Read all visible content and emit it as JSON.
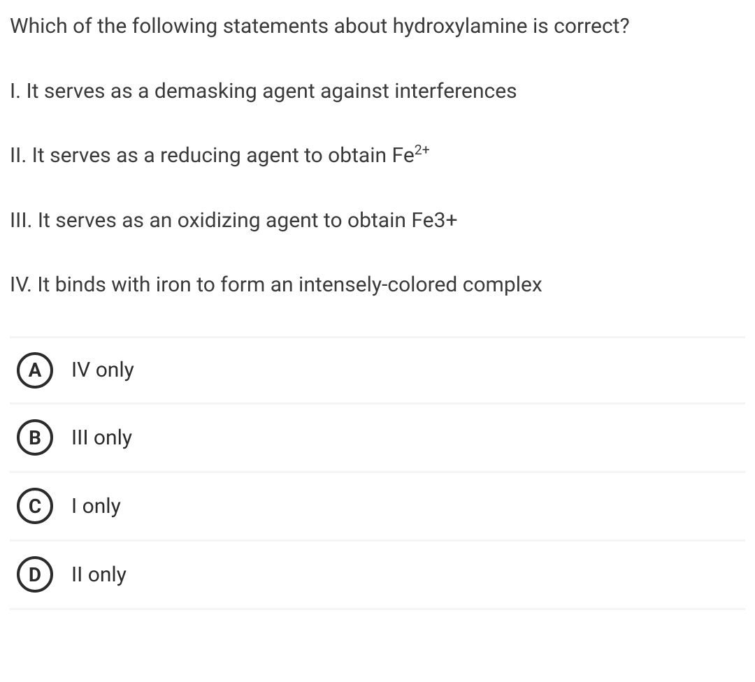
{
  "question": {
    "prompt": "Which of the following statements about hydroxylamine is correct?",
    "statements": [
      {
        "text_pre": "I. It serves as a demasking agent against interferences",
        "sup": "",
        "text_post": ""
      },
      {
        "text_pre": "II. It serves as a reducing agent to obtain Fe",
        "sup": "2+",
        "text_post": ""
      },
      {
        "text_pre": "III. It serves as an oxidizing agent to obtain Fe3+",
        "sup": "",
        "text_post": ""
      },
      {
        "text_pre": "IV. It binds with iron to form an intensely-colored complex",
        "sup": "",
        "text_post": ""
      }
    ],
    "options": [
      {
        "letter": "A",
        "text": "IV only"
      },
      {
        "letter": "B",
        "text": "III only"
      },
      {
        "letter": "C",
        "text": "I only"
      },
      {
        "letter": "D",
        "text": "II only"
      }
    ]
  },
  "style": {
    "text_color": "#3a3a3a",
    "option_border_color": "#f4f4f4",
    "option_circle_color": "#2b2b2b",
    "background": "#ffffff",
    "prompt_fontsize": 30,
    "statement_fontsize": 30,
    "option_fontsize": 30,
    "option_letter_fontsize": 28,
    "option_row_height": 98,
    "circle_size": 52,
    "circle_border_width": 4
  }
}
